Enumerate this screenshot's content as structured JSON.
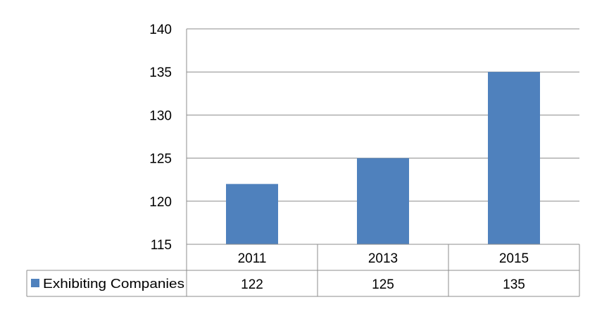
{
  "chart_data": {
    "type": "bar",
    "categories": [
      "2011",
      "2013",
      "2015"
    ],
    "series": [
      {
        "name": "Exhibiting Companies",
        "values": [
          122,
          125,
          135
        ],
        "color": "#4F81BD"
      }
    ],
    "y_ticks": [
      "115",
      "120",
      "125",
      "130",
      "135",
      "140"
    ],
    "ylim": [
      115,
      140
    ],
    "grid": true,
    "legend": "data-table",
    "data_table": {
      "rows": [
        {
          "label": "Exhibiting Companies",
          "values": [
            "122",
            "125",
            "135"
          ]
        }
      ]
    }
  }
}
